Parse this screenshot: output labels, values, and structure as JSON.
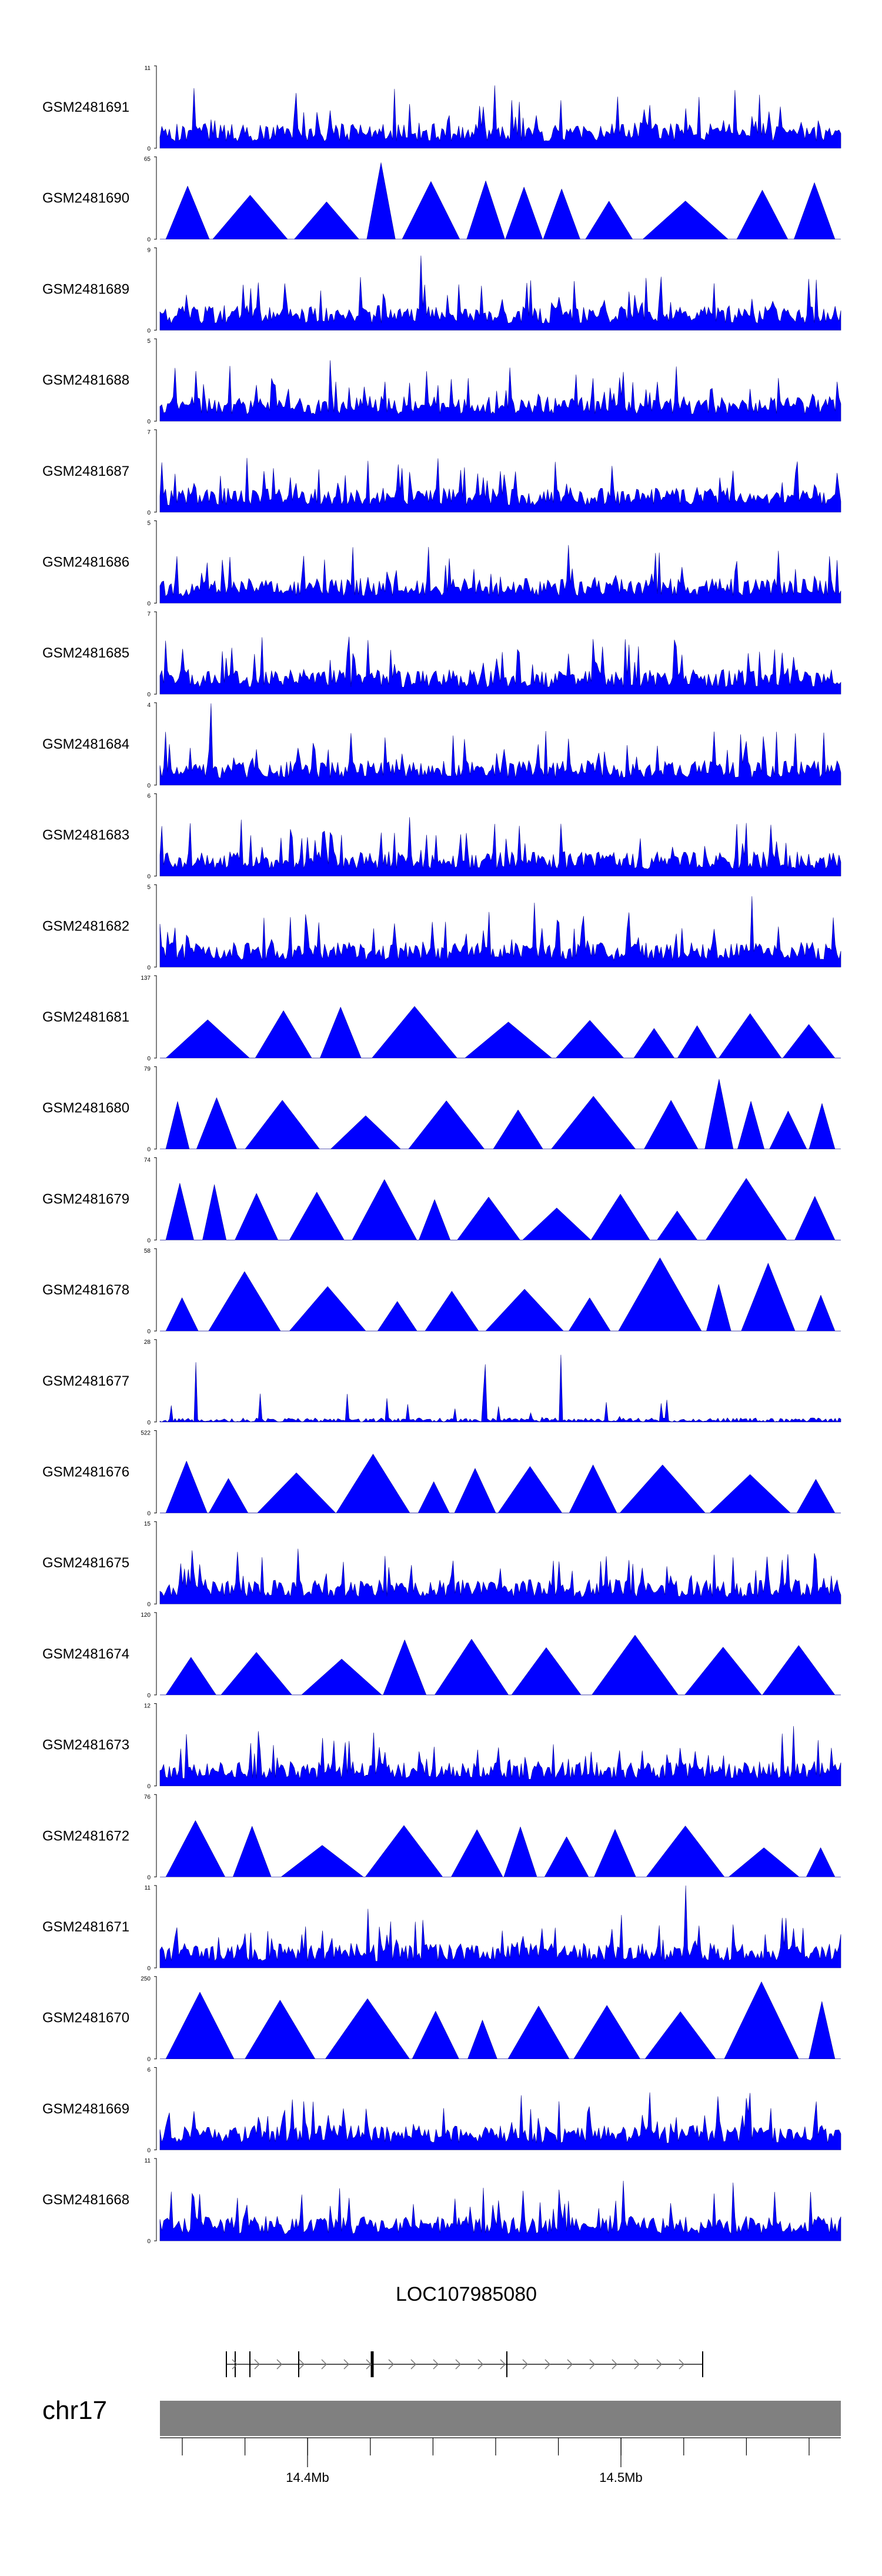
{
  "chart_data": {
    "type": "area",
    "tracks": [
      {
        "name": "GSM2481691",
        "ymax": "11",
        "ymin": "0",
        "style": "dense"
      },
      {
        "name": "GSM2481690",
        "ymax": "65",
        "ymin": "0",
        "style": "tri"
      },
      {
        "name": "GSM2481689",
        "ymax": "9",
        "ymin": "0",
        "style": "dense"
      },
      {
        "name": "GSM2481688",
        "ymax": "5",
        "ymin": "0",
        "style": "dense"
      },
      {
        "name": "GSM2481687",
        "ymax": "7",
        "ymin": "0",
        "style": "dense"
      },
      {
        "name": "GSM2481686",
        "ymax": "5",
        "ymin": "0",
        "style": "dense"
      },
      {
        "name": "GSM2481685",
        "ymax": "7",
        "ymin": "0",
        "style": "dense"
      },
      {
        "name": "GSM2481684",
        "ymax": "4",
        "ymin": "0",
        "style": "dense"
      },
      {
        "name": "GSM2481683",
        "ymax": "6",
        "ymin": "0",
        "style": "dense"
      },
      {
        "name": "GSM2481682",
        "ymax": "5",
        "ymin": "0",
        "style": "dense"
      },
      {
        "name": "GSM2481681",
        "ymax": "137",
        "ymin": "0",
        "style": "tri"
      },
      {
        "name": "GSM2481680",
        "ymax": "79",
        "ymin": "0",
        "style": "tri"
      },
      {
        "name": "GSM2481679",
        "ymax": "74",
        "ymin": "0",
        "style": "tri"
      },
      {
        "name": "GSM2481678",
        "ymax": "58",
        "ymin": "0",
        "style": "tri"
      },
      {
        "name": "GSM2481677",
        "ymax": "28",
        "ymin": "0",
        "style": "sparse"
      },
      {
        "name": "GSM2481676",
        "ymax": "522",
        "ymin": "0",
        "style": "tri"
      },
      {
        "name": "GSM2481675",
        "ymax": "15",
        "ymin": "0",
        "style": "dense"
      },
      {
        "name": "GSM2481674",
        "ymax": "120",
        "ymin": "0",
        "style": "tri"
      },
      {
        "name": "GSM2481673",
        "ymax": "12",
        "ymin": "0",
        "style": "dense"
      },
      {
        "name": "GSM2481672",
        "ymax": "76",
        "ymin": "0",
        "style": "tri"
      },
      {
        "name": "GSM2481671",
        "ymax": "11",
        "ymin": "0",
        "style": "dense"
      },
      {
        "name": "GSM2481670",
        "ymax": "250",
        "ymin": "0",
        "style": "tri"
      },
      {
        "name": "GSM2481669",
        "ymax": "6",
        "ymin": "0",
        "style": "dense"
      },
      {
        "name": "GSM2481668",
        "ymax": "11",
        "ymin": "0",
        "style": "dense"
      }
    ],
    "gene": {
      "name": "LOC107985080",
      "strand": "+"
    },
    "chromosome": "chr17",
    "axis": {
      "unit": "Mb",
      "ticks": [
        "14.4Mb",
        "14.5Mb"
      ]
    },
    "colors": {
      "signal": "#0000ff",
      "signal_dark": "#00008b",
      "ideogram": "#808080",
      "axis": "#000000"
    }
  }
}
